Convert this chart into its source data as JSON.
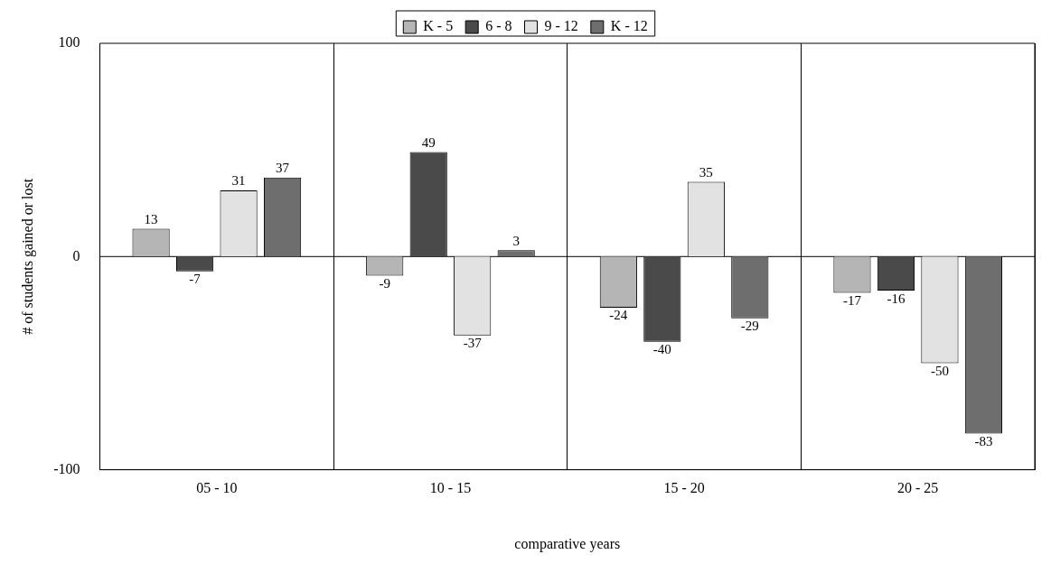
{
  "chart_data": {
    "type": "bar",
    "xlabel": "comparative years",
    "ylabel": "# of students gained or lost",
    "categories": [
      "05 - 10",
      "10 - 15",
      "15 - 20",
      "20 - 25"
    ],
    "series": [
      {
        "name": "K - 5",
        "color": "#b5b5b5",
        "values": [
          13,
          -9,
          -24,
          -17
        ]
      },
      {
        "name": "6 - 8",
        "color": "#4a4a4a",
        "values": [
          -7,
          49,
          -40,
          -16
        ]
      },
      {
        "name": "9 - 12",
        "color": "#e2e2e2",
        "values": [
          31,
          -37,
          35,
          -50
        ]
      },
      {
        "name": "K - 12",
        "color": "#6e6e6e",
        "values": [
          37,
          3,
          -29,
          -83
        ]
      }
    ],
    "ylim": [
      -100,
      100
    ],
    "yticks": [
      -100,
      0,
      100
    ],
    "grid": "x",
    "legend": "top",
    "data_labels": true,
    "ref_lines": [
      {
        "axis": "y",
        "value": 0
      }
    ]
  }
}
